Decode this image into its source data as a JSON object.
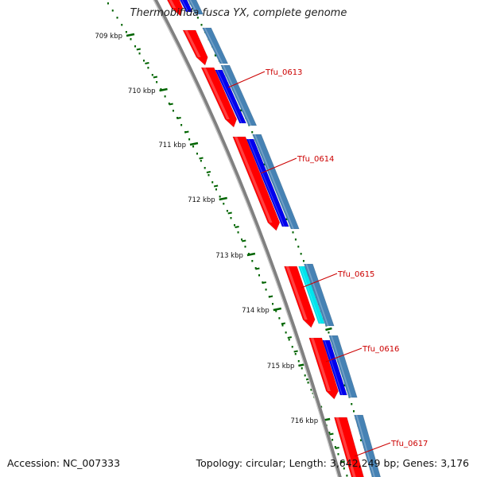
{
  "header": {
    "title": "Thermobifida fusca YX, complete genome"
  },
  "footer": {
    "accession": "Accession: NC_007333",
    "summary": "Topology: circular; Length: 3,642,249 bp; Genes: 3,176"
  },
  "axis": {
    "ticks": [
      {
        "kbp": 709,
        "label": "709 kbp"
      },
      {
        "kbp": 710,
        "label": "710 kbp"
      },
      {
        "kbp": 711,
        "label": "711 kbp"
      },
      {
        "kbp": 712,
        "label": "712 kbp"
      },
      {
        "kbp": 713,
        "label": "713 kbp"
      },
      {
        "kbp": 714,
        "label": "714 kbp"
      },
      {
        "kbp": 715,
        "label": "715 kbp"
      },
      {
        "kbp": 716,
        "label": "716 kbp"
      }
    ]
  },
  "colors": {
    "backbone": "#808080",
    "cds": "#ff0000",
    "blue": "#0000ee",
    "steel": "#4682b4",
    "cyan": "#00e5ee",
    "tick": "#006400",
    "label": "#cc0000"
  },
  "genes": [
    {
      "name": "Tfu_0613",
      "labeled": true,
      "color": "#cc0000"
    },
    {
      "name": "Tfu_0614",
      "labeled": true,
      "color": "#cc0000"
    },
    {
      "name": "Tfu_0615",
      "labeled": true,
      "color": "#cc0000"
    },
    {
      "name": "Tfu_0616",
      "labeled": true,
      "color": "#cc0000"
    },
    {
      "name": "Tfu_0617",
      "labeled": true,
      "color": "#cc0000"
    }
  ]
}
